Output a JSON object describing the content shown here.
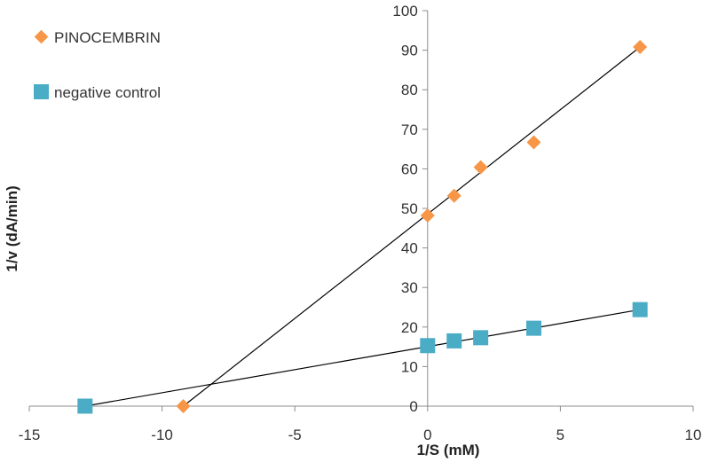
{
  "chart_data": {
    "type": "scatter",
    "title": "",
    "xlabel": "1/S (mM)",
    "ylabel": "1/v (dA/min)",
    "xlim": [
      -15,
      10
    ],
    "ylim": [
      0,
      100
    ],
    "xticks": [
      -15,
      -10,
      -5,
      0,
      5,
      10
    ],
    "yticks": [
      0,
      10,
      20,
      30,
      40,
      50,
      60,
      70,
      80,
      90,
      100
    ],
    "legend_position": "top-left",
    "grid": false,
    "series": [
      {
        "name": "PINOCEMBRIN",
        "marker": "diamond",
        "color": "#f79646",
        "x": [
          -9.2,
          0,
          1,
          2,
          4,
          8
        ],
        "y": [
          0,
          48.2,
          53.2,
          60.4,
          66.7,
          90.8
        ],
        "trendline": {
          "x": [
            -9.2,
            8
          ],
          "y": [
            0,
            90.8
          ]
        }
      },
      {
        "name": "negative control",
        "marker": "square",
        "color": "#4bacc6",
        "x": [
          -12.9,
          0,
          1,
          2,
          4,
          8
        ],
        "y": [
          0,
          15.3,
          16.5,
          17.3,
          19.7,
          24.4
        ],
        "trendline": {
          "x": [
            -12.9,
            8
          ],
          "y": [
            0,
            24.4
          ]
        }
      }
    ]
  }
}
